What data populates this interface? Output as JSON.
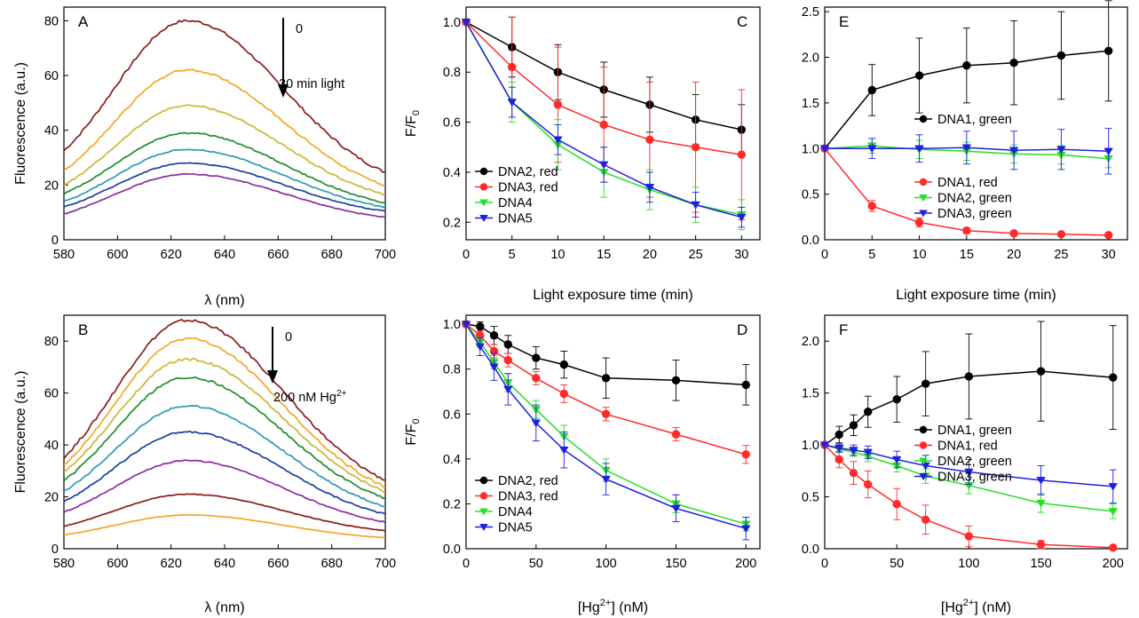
{
  "chart_data": [
    {
      "panel": "A",
      "type": "line",
      "ylabel": "Fluorescence (a.u.)",
      "xlabel": "λ (nm)",
      "xlim": [
        580,
        700
      ],
      "ylim": [
        0,
        85
      ],
      "xticks": [
        580,
        600,
        620,
        640,
        660,
        680,
        700
      ],
      "yticks": [
        0,
        20,
        40,
        60,
        80
      ],
      "annotations": [
        "0",
        "30 min light"
      ],
      "series": [
        {
          "color": "#8b1a1a",
          "x": [
            580,
            600,
            626,
            660,
            700
          ],
          "y": [
            18,
            52,
            80,
            55,
            17
          ]
        },
        {
          "color": "#f5a623",
          "x": [
            580,
            600,
            626,
            660,
            700
          ],
          "y": [
            14,
            40,
            62,
            42,
            14
          ]
        },
        {
          "color": "#c8b830",
          "x": [
            580,
            600,
            626,
            660,
            700
          ],
          "y": [
            11,
            32,
            49,
            34,
            12
          ]
        },
        {
          "color": "#1e8c2a",
          "x": [
            580,
            600,
            626,
            660,
            700
          ],
          "y": [
            10,
            26,
            39,
            28,
            10
          ]
        },
        {
          "color": "#2a9ab8",
          "x": [
            580,
            600,
            626,
            660,
            700
          ],
          "y": [
            8,
            22,
            33,
            24,
            9
          ]
        },
        {
          "color": "#1a3fa0",
          "x": [
            580,
            600,
            626,
            660,
            700
          ],
          "y": [
            7,
            19,
            28,
            21,
            8
          ]
        },
        {
          "color": "#8a2c9e",
          "x": [
            580,
            600,
            626,
            660,
            700
          ],
          "y": [
            5,
            16,
            24,
            18,
            6
          ]
        }
      ]
    },
    {
      "panel": "B",
      "type": "line",
      "ylabel": "Fluorescence (a.u.)",
      "xlabel": "λ (nm)",
      "xlim": [
        580,
        700
      ],
      "ylim": [
        0,
        90
      ],
      "xticks": [
        580,
        600,
        620,
        640,
        660,
        680,
        700
      ],
      "yticks": [
        0,
        20,
        40,
        60,
        80
      ],
      "annotations": [
        "0",
        "200 nM Hg",
        "2+"
      ],
      "series": [
        {
          "color": "#8b1a1a",
          "x": [
            580,
            600,
            626,
            660,
            700
          ],
          "y": [
            19,
            60,
            88,
            58,
            18
          ]
        },
        {
          "color": "#f5a623",
          "x": [
            580,
            600,
            626,
            660,
            700
          ],
          "y": [
            17,
            55,
            81,
            53,
            16
          ]
        },
        {
          "color": "#c8b830",
          "x": [
            580,
            600,
            626,
            660,
            700
          ],
          "y": [
            16,
            50,
            73,
            48,
            15
          ]
        },
        {
          "color": "#1e8c2a",
          "x": [
            580,
            600,
            626,
            660,
            700
          ],
          "y": [
            14,
            45,
            66,
            43,
            13
          ]
        },
        {
          "color": "#2a9ab8",
          "x": [
            580,
            600,
            626,
            660,
            700
          ],
          "y": [
            12,
            37,
            55,
            36,
            11
          ]
        },
        {
          "color": "#1a3fa0",
          "x": [
            580,
            600,
            626,
            660,
            700
          ],
          "y": [
            10,
            30,
            45,
            30,
            9
          ]
        },
        {
          "color": "#8a2c9e",
          "x": [
            580,
            600,
            626,
            660,
            700
          ],
          "y": [
            8,
            23,
            34,
            22,
            7
          ]
        },
        {
          "color": "#8b1a1a",
          "x": [
            580,
            600,
            626,
            660,
            700
          ],
          "y": [
            5,
            15,
            21,
            14,
            5
          ]
        },
        {
          "color": "#f5a623",
          "x": [
            580,
            600,
            626,
            660,
            700
          ],
          "y": [
            3,
            9,
            13,
            9,
            3
          ]
        }
      ]
    },
    {
      "panel": "C",
      "type": "line",
      "ylabel": "F/F",
      "ylabel_sub": "0",
      "xlabel": "Light exposure time (min)",
      "xlim": [
        0,
        32
      ],
      "ylim": [
        0.13,
        1.06
      ],
      "xticks": [
        0,
        5,
        10,
        15,
        20,
        25,
        30
      ],
      "yticks": [
        0.2,
        0.4,
        0.6,
        0.8,
        1.0
      ],
      "ytick_labels": [
        "0.2",
        "0.4",
        "0.6",
        "0.8",
        "1.0"
      ],
      "legend": "lower-left",
      "series": [
        {
          "name": "DNA2, red",
          "color": "#000000",
          "marker": "circle",
          "x": [
            0,
            5,
            10,
            15,
            20,
            25,
            30
          ],
          "y": [
            1.0,
            0.9,
            0.8,
            0.73,
            0.67,
            0.61,
            0.57
          ],
          "err": [
            0,
            0.12,
            0.11,
            0.11,
            0.11,
            0.1,
            0.1
          ]
        },
        {
          "name": "DNA3, red",
          "color": "#ff2a2a",
          "marker": "circle",
          "x": [
            0,
            5,
            10,
            15,
            20,
            25,
            30
          ],
          "y": [
            1.0,
            0.82,
            0.67,
            0.59,
            0.53,
            0.5,
            0.47
          ],
          "err": [
            0,
            0.2,
            0.23,
            0.23,
            0.23,
            0.26,
            0.26
          ]
        },
        {
          "name": "DNA4",
          "color": "#22e022",
          "marker": "triangle-down",
          "x": [
            0,
            5,
            10,
            15,
            20,
            25,
            30
          ],
          "y": [
            1.0,
            0.68,
            0.51,
            0.4,
            0.33,
            0.27,
            0.23
          ],
          "err": [
            0,
            0.08,
            0.1,
            0.1,
            0.08,
            0.07,
            0.06
          ]
        },
        {
          "name": "DNA5",
          "color": "#1f1fe0",
          "marker": "triangle-down",
          "x": [
            0,
            5,
            10,
            15,
            20,
            25,
            30
          ],
          "y": [
            1.0,
            0.68,
            0.53,
            0.43,
            0.34,
            0.27,
            0.22
          ],
          "err": [
            0,
            0.06,
            0.06,
            0.07,
            0.06,
            0.05,
            0.04
          ]
        }
      ]
    },
    {
      "panel": "D",
      "type": "line",
      "ylabel": "F/F",
      "ylabel_sub": "0",
      "xlabel": "[Hg",
      "xlabel_sup": "2+",
      "xlabel_tail": "] (nM)",
      "xlim": [
        0,
        210
      ],
      "ylim": [
        0,
        1.04
      ],
      "xticks": [
        0,
        50,
        100,
        150,
        200
      ],
      "yticks": [
        0.0,
        0.2,
        0.4,
        0.6,
        0.8,
        1.0
      ],
      "ytick_labels": [
        "0.0",
        "0.2",
        "0.4",
        "0.6",
        "0.8",
        "1.0"
      ],
      "legend": "lower-left",
      "series": [
        {
          "name": "DNA2, red",
          "color": "#000000",
          "marker": "circle",
          "x": [
            0,
            10,
            20,
            30,
            50,
            70,
            100,
            150,
            200
          ],
          "y": [
            1.0,
            0.99,
            0.95,
            0.91,
            0.85,
            0.82,
            0.76,
            0.75,
            0.73
          ],
          "err": [
            0,
            0.02,
            0.04,
            0.04,
            0.05,
            0.06,
            0.09,
            0.09,
            0.09
          ]
        },
        {
          "name": "DNA3, red",
          "color": "#ff2a2a",
          "marker": "circle",
          "x": [
            0,
            10,
            20,
            30,
            50,
            70,
            100,
            150,
            200
          ],
          "y": [
            1.0,
            0.95,
            0.88,
            0.84,
            0.76,
            0.69,
            0.6,
            0.51,
            0.42
          ],
          "err": [
            0,
            0.02,
            0.03,
            0.03,
            0.03,
            0.04,
            0.03,
            0.03,
            0.04
          ]
        },
        {
          "name": "DNA4",
          "color": "#22e022",
          "marker": "triangle-down",
          "x": [
            0,
            10,
            20,
            30,
            50,
            70,
            100,
            150,
            200
          ],
          "y": [
            1.0,
            0.92,
            0.83,
            0.74,
            0.62,
            0.5,
            0.35,
            0.2,
            0.11
          ],
          "err": [
            0,
            0.02,
            0.03,
            0.04,
            0.04,
            0.05,
            0.05,
            0.04,
            0.03
          ]
        },
        {
          "name": "DNA5",
          "color": "#1f1fe0",
          "marker": "triangle-down",
          "x": [
            0,
            10,
            20,
            30,
            50,
            70,
            100,
            150,
            200
          ],
          "y": [
            1.0,
            0.9,
            0.81,
            0.71,
            0.56,
            0.44,
            0.31,
            0.18,
            0.09
          ],
          "err": [
            0,
            0.04,
            0.06,
            0.07,
            0.08,
            0.08,
            0.07,
            0.06,
            0.05
          ]
        }
      ]
    },
    {
      "panel": "E",
      "type": "line",
      "xlabel": "Light exposure time (min)",
      "xlim": [
        0,
        32
      ],
      "ylim": [
        0,
        2.55
      ],
      "xticks": [
        0,
        5,
        10,
        15,
        20,
        25,
        30
      ],
      "yticks": [
        0.0,
        0.5,
        1.0,
        1.5,
        2.0,
        2.5
      ],
      "ytick_labels": [
        "0.0",
        "0.5",
        "1.0",
        "1.5",
        "2.0",
        "2.5"
      ],
      "legend": "split: DNA1 green at right-middle; others at lower-right",
      "series": [
        {
          "name": "DNA1, green",
          "color": "#000000",
          "marker": "circle",
          "x": [
            0,
            5,
            10,
            15,
            20,
            25,
            30
          ],
          "y": [
            1.0,
            1.64,
            1.8,
            1.91,
            1.94,
            2.02,
            2.07
          ],
          "err": [
            0,
            0.28,
            0.41,
            0.41,
            0.46,
            0.48,
            0.55
          ]
        },
        {
          "name": "DNA1, red",
          "color": "#ff2a2a",
          "marker": "circle",
          "x": [
            0,
            5,
            10,
            15,
            20,
            25,
            30
          ],
          "y": [
            1.0,
            0.37,
            0.19,
            0.1,
            0.07,
            0.06,
            0.05
          ],
          "err": [
            0,
            0.06,
            0.05,
            0.03,
            0.02,
            0.02,
            0.02
          ]
        },
        {
          "name": "DNA2, green",
          "color": "#22e022",
          "marker": "triangle-down",
          "x": [
            0,
            5,
            10,
            15,
            20,
            25,
            30
          ],
          "y": [
            1.0,
            1.03,
            0.99,
            0.97,
            0.94,
            0.93,
            0.89
          ],
          "err": [
            0,
            0.08,
            0.1,
            0.1,
            0.1,
            0.1,
            0.1
          ]
        },
        {
          "name": "DNA3, green",
          "color": "#1f1fe0",
          "marker": "triangle-down",
          "x": [
            0,
            5,
            10,
            15,
            20,
            25,
            30
          ],
          "y": [
            1.0,
            1.0,
            1.0,
            1.01,
            0.98,
            0.99,
            0.97
          ],
          "err": [
            0,
            0.11,
            0.15,
            0.18,
            0.21,
            0.22,
            0.25
          ]
        }
      ]
    },
    {
      "panel": "F",
      "type": "line",
      "xlabel": "[Hg",
      "xlabel_sup": "2+",
      "xlabel_tail": "] (nM)",
      "xlim": [
        0,
        210
      ],
      "ylim": [
        0,
        2.25
      ],
      "xticks": [
        0,
        50,
        100,
        150,
        200
      ],
      "yticks": [
        0.0,
        0.5,
        1.0,
        1.5,
        2.0
      ],
      "ytick_labels": [
        "0.0",
        "0.5",
        "1.0",
        "1.5",
        "2.0"
      ],
      "legend": "right-middle",
      "series": [
        {
          "name": "DNA1, green",
          "color": "#000000",
          "marker": "circle",
          "x": [
            0,
            10,
            20,
            30,
            50,
            70,
            100,
            150,
            200
          ],
          "y": [
            1.0,
            1.1,
            1.19,
            1.32,
            1.44,
            1.59,
            1.66,
            1.71,
            1.65
          ],
          "err": [
            0,
            0.08,
            0.1,
            0.15,
            0.22,
            0.31,
            0.41,
            0.48,
            0.5
          ]
        },
        {
          "name": "DNA1, red",
          "color": "#ff2a2a",
          "marker": "circle",
          "x": [
            0,
            10,
            20,
            30,
            50,
            70,
            100,
            150,
            200
          ],
          "y": [
            1.0,
            0.86,
            0.73,
            0.62,
            0.43,
            0.28,
            0.12,
            0.04,
            0.01
          ],
          "err": [
            0,
            0.08,
            0.11,
            0.13,
            0.15,
            0.14,
            0.1,
            0.04,
            0.02
          ]
        },
        {
          "name": "DNA2, green",
          "color": "#22e022",
          "marker": "triangle-down",
          "x": [
            0,
            10,
            20,
            30,
            50,
            70,
            100,
            150,
            200
          ],
          "y": [
            1.0,
            0.96,
            0.93,
            0.89,
            0.8,
            0.7,
            0.61,
            0.44,
            0.36
          ],
          "err": [
            0,
            0.03,
            0.04,
            0.05,
            0.06,
            0.07,
            0.08,
            0.09,
            0.07
          ]
        },
        {
          "name": "DNA3, green",
          "color": "#1f1fe0",
          "marker": "triangle-down",
          "x": [
            0,
            10,
            20,
            30,
            50,
            70,
            100,
            150,
            200
          ],
          "y": [
            1.0,
            0.97,
            0.95,
            0.93,
            0.86,
            0.8,
            0.74,
            0.66,
            0.6
          ],
          "err": [
            0,
            0.04,
            0.05,
            0.06,
            0.08,
            0.1,
            0.12,
            0.14,
            0.16
          ]
        }
      ]
    }
  ]
}
